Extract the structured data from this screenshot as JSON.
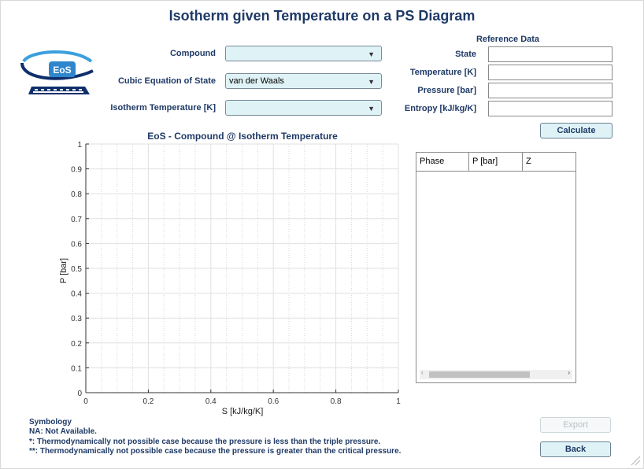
{
  "title": "Isotherm given Temperature on a PS Diagram",
  "logo": {
    "text": "EoS"
  },
  "form": {
    "compound_label": "Compound",
    "compound_value": "",
    "eos_label": "Cubic Equation of State",
    "eos_value": "van der Waals",
    "temp_label": "Isotherm Temperature [K]",
    "temp_value": ""
  },
  "reference": {
    "heading": "Reference Data",
    "state_label": "State",
    "temperature_label": "Temperature [K]",
    "pressure_label": "Pressure [bar]",
    "entropy_label": "Entropy [kJ/kg/K]",
    "state_value": "",
    "temperature_value": "",
    "pressure_value": "",
    "entropy_value": ""
  },
  "buttons": {
    "calculate": "Calculate",
    "export": "Export",
    "back": "Back"
  },
  "table": {
    "headers": [
      "Phase",
      "P [bar]",
      "Z"
    ],
    "rows": []
  },
  "chart_data": {
    "type": "line",
    "title": "EoS - Compound @ Isotherm Temperature",
    "xlabel": "S [kJ/kg/K]",
    "ylabel": "P [bar]",
    "xlim": [
      0,
      1
    ],
    "ylim": [
      0,
      1
    ],
    "xticks": [
      "0",
      "0.2",
      "0.4",
      "0.6",
      "0.8",
      "1"
    ],
    "yticks": [
      "0",
      "0.1",
      "0.2",
      "0.3",
      "0.4",
      "0.5",
      "0.6",
      "0.7",
      "0.8",
      "0.9",
      "1"
    ],
    "grid": true,
    "minor_grid": true,
    "series": []
  },
  "symbology": {
    "heading": "Symbology",
    "na": "NA: Not Available.",
    "single": "*: Thermodynamically not possible case because the pressure is less than the triple pressure.",
    "double": "**: Thermodynamically not possible case because the pressure is greater than the critical pressure."
  },
  "icons": {
    "dropdown": "caret-down-icon",
    "resize": "resize-grip-icon",
    "scroll_right": "chevron-right-icon",
    "scroll_left": "chevron-left-icon"
  }
}
